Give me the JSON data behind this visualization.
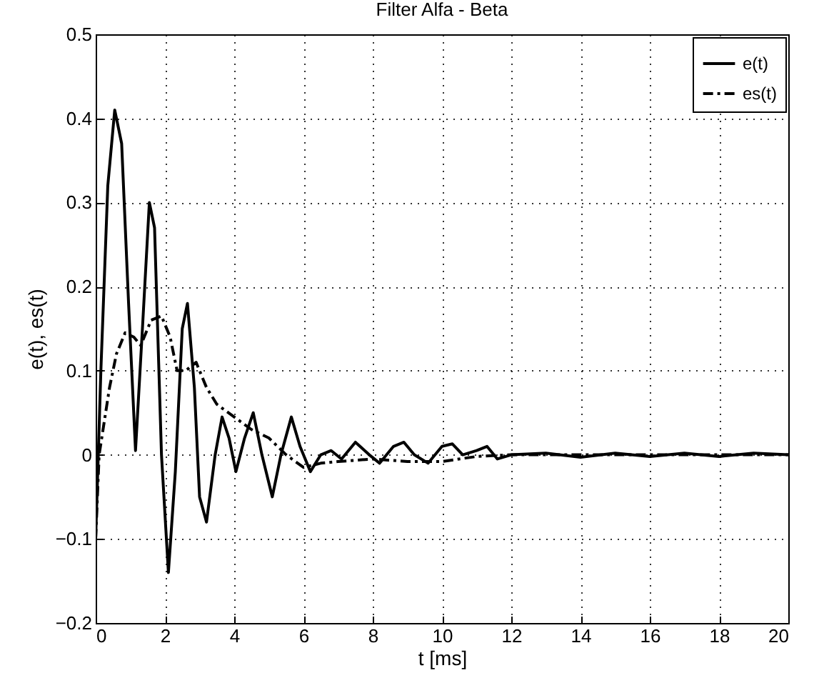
{
  "chart_data": {
    "type": "line",
    "title": "Filter Alfa - Beta",
    "xlabel": "t [ms]",
    "ylabel": "e(t), es(t)",
    "xlim": [
      0,
      20
    ],
    "xticks": [
      0,
      2,
      4,
      6,
      8,
      10,
      12,
      14,
      16,
      18,
      20
    ],
    "ylim": [
      -0.2,
      0.5
    ],
    "yticks": [
      -0.2,
      -0.1,
      0,
      0.1,
      0.2,
      0.3,
      0.4,
      0.5
    ],
    "grid": true,
    "legend": "top right",
    "marker": "none",
    "series": [
      {
        "name": "e(t)",
        "color": "#000000",
        "line_style": "solid",
        "x": [
          0,
          0.15,
          0.35,
          0.55,
          0.75,
          0.95,
          1.15,
          1.35,
          1.55,
          1.7,
          1.9,
          2.1,
          2.3,
          2.5,
          2.65,
          2.85,
          3.0,
          3.2,
          3.45,
          3.65,
          3.85,
          4.05,
          4.3,
          4.55,
          4.8,
          5.1,
          5.35,
          5.65,
          5.9,
          6.2,
          6.5,
          6.8,
          7.1,
          7.5,
          7.9,
          8.2,
          8.6,
          8.9,
          9.2,
          9.6,
          10.0,
          10.3,
          10.6,
          11.0,
          11.3,
          11.6,
          12,
          13,
          14,
          15,
          16,
          17,
          18,
          19,
          20
        ],
        "values": [
          -0.1,
          0.1,
          0.32,
          0.41,
          0.37,
          0.18,
          0.005,
          0.15,
          0.3,
          0.27,
          0.0,
          -0.14,
          -0.02,
          0.15,
          0.18,
          0.08,
          -0.05,
          -0.08,
          0.0,
          0.045,
          0.02,
          -0.02,
          0.02,
          0.05,
          0.0,
          -0.05,
          0.0,
          0.045,
          0.01,
          -0.02,
          0.0,
          0.005,
          -0.005,
          0.015,
          0.0,
          -0.01,
          0.01,
          0.015,
          0.0,
          -0.01,
          0.01,
          0.013,
          0.0,
          0.005,
          0.01,
          -0.005,
          0.0,
          0.002,
          -0.003,
          0.002,
          -0.002,
          0.002,
          -0.002,
          0.002,
          0.0
        ]
      },
      {
        "name": "es(t)",
        "color": "#000000",
        "line_style": "dashed",
        "x": [
          0,
          0.1,
          0.4,
          0.6,
          0.85,
          1.1,
          1.3,
          1.6,
          1.9,
          2.15,
          2.35,
          2.6,
          2.9,
          3.2,
          3.5,
          4.0,
          4.5,
          5.0,
          5.5,
          6.0,
          6.5,
          7.0,
          8.0,
          9.0,
          10.0,
          11.0,
          12.0,
          14.0,
          16.0,
          20.0
        ],
        "values": [
          -0.1,
          0.0,
          0.08,
          0.12,
          0.145,
          0.14,
          0.13,
          0.16,
          0.165,
          0.14,
          0.1,
          0.1,
          0.11,
          0.08,
          0.06,
          0.045,
          0.03,
          0.02,
          0.0,
          -0.015,
          -0.01,
          -0.008,
          -0.005,
          -0.008,
          -0.008,
          -0.002,
          0.0,
          0.0,
          0.0,
          0.0
        ]
      }
    ]
  }
}
